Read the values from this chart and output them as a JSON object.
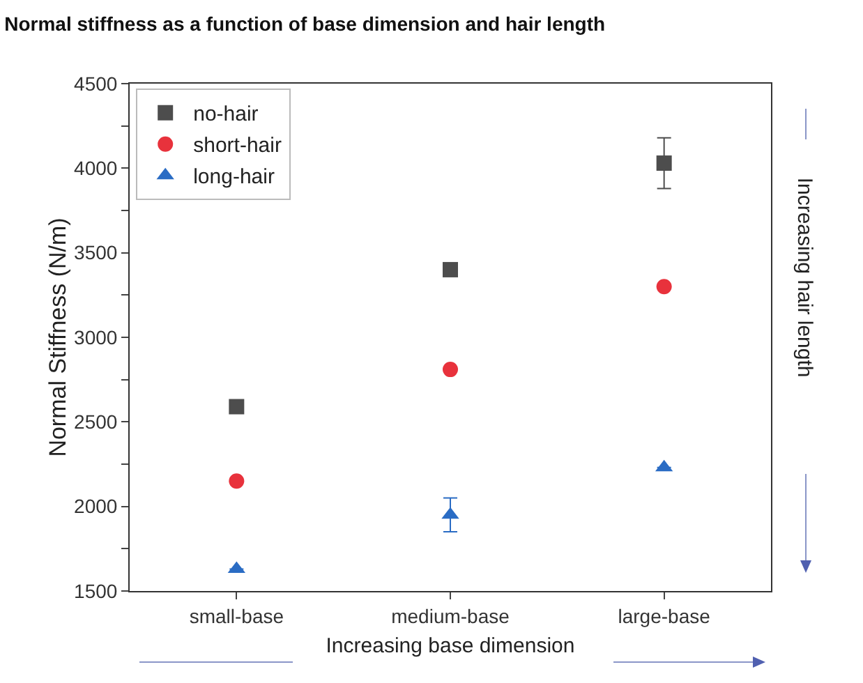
{
  "chart_data": {
    "type": "scatter",
    "title": "Normal stiffness as a function of base dimension and hair length",
    "xlabel": "Increasing base dimension",
    "ylabel": "Normal Stiffness (N/m)",
    "annotations": [
      "Increasing hair length"
    ],
    "categories": [
      "small-base",
      "medium-base",
      "large-base"
    ],
    "series": [
      {
        "name": "no-hair",
        "color": "#4d4d4d",
        "marker": "square",
        "values": [
          2590,
          3400,
          4030
        ],
        "errors": [
          null,
          null,
          150
        ]
      },
      {
        "name": "short-hair",
        "color": "#e8323c",
        "marker": "circle",
        "values": [
          2150,
          2810,
          3300
        ]
      },
      {
        "name": "long-hair",
        "color": "#2a6cc4",
        "marker": "triangle",
        "values": [
          1630,
          1950,
          2230
        ],
        "errors": [
          null,
          100,
          null
        ]
      }
    ],
    "ylim": [
      1500,
      4500
    ],
    "yticks": [
      1500,
      {
        "value": 1750,
        "label": null
      },
      2000,
      {
        "value": 2250,
        "label": null
      },
      2500,
      {
        "value": 2750,
        "label": null
      },
      3000,
      {
        "value": 3250,
        "label": null
      },
      3500,
      {
        "value": 3750,
        "label": null
      },
      4000,
      {
        "value": 4250,
        "label": null
      },
      4500
    ],
    "grid": false,
    "legend": "top left"
  }
}
